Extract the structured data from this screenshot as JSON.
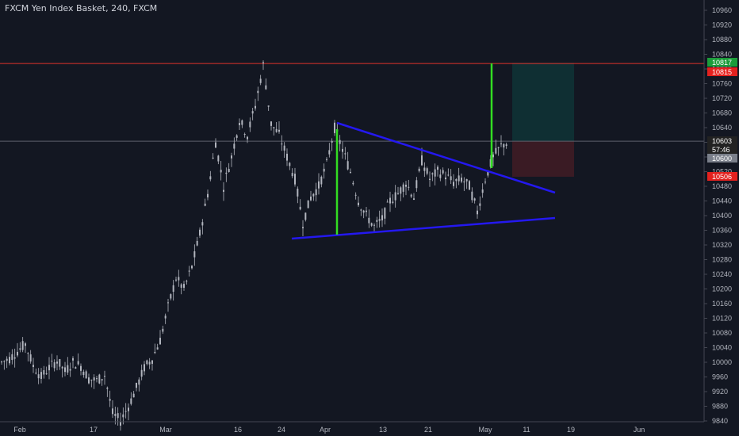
{
  "header": {
    "title": "FXCM Yen Index Basket, 240, FXCM"
  },
  "colors": {
    "background": "#131722",
    "text": "#b2b5be",
    "candle": "#b2b5be",
    "trendline": "#2418f0",
    "measure": "#33dd22",
    "resistance": "#e0332b",
    "target_zone": "#0f2f33",
    "stop_zone": "#3a1b24",
    "price_tag_green": "#1c9c3a",
    "price_tag_red": "#e3211e",
    "price_tag_dark": "#222222",
    "price_tag_gray": "#7a7f8a"
  },
  "chart_data": {
    "type": "candlestick",
    "title": "FXCM Yen Index Basket, 240, FXCM",
    "ylim": [
      9830,
      10990
    ],
    "y_ticks": [
      9840,
      9880,
      9920,
      9960,
      10000,
      10040,
      10080,
      10120,
      10160,
      10200,
      10240,
      10280,
      10320,
      10360,
      10400,
      10440,
      10480,
      10520,
      10560,
      10600,
      10640,
      10680,
      10720,
      10760,
      10800,
      10840,
      10880,
      10920,
      10960
    ],
    "x_ticks": [
      "Feb",
      "17",
      "Mar",
      "16",
      "24",
      "Apr",
      "13",
      "21",
      "May",
      "11",
      "19",
      "Jun"
    ],
    "price_path": [
      [
        0,
        10000
      ],
      [
        1,
        10010
      ],
      [
        2,
        10030
      ],
      [
        3,
        10050
      ],
      [
        4,
        9990
      ],
      [
        5,
        9960
      ],
      [
        6,
        9985
      ],
      [
        7,
        10005
      ],
      [
        8,
        9975
      ],
      [
        9,
        10000
      ],
      [
        10,
        9990
      ],
      [
        11,
        9955
      ],
      [
        12,
        9950
      ],
      [
        13,
        9965
      ],
      [
        14,
        9860
      ],
      [
        15,
        9840
      ],
      [
        16,
        9880
      ],
      [
        17,
        9930
      ],
      [
        18,
        9985
      ],
      [
        19,
        10010
      ],
      [
        20,
        10060
      ],
      [
        21,
        10150
      ],
      [
        22,
        10230
      ],
      [
        23,
        10200
      ],
      [
        24,
        10260
      ],
      [
        25,
        10350
      ],
      [
        26,
        10460
      ],
      [
        27,
        10600
      ],
      [
        28,
        10480
      ],
      [
        29,
        10560
      ],
      [
        30,
        10660
      ],
      [
        31,
        10620
      ],
      [
        32,
        10700
      ],
      [
        33,
        10810
      ],
      [
        34,
        10650
      ],
      [
        35,
        10620
      ],
      [
        36,
        10560
      ],
      [
        37,
        10500
      ],
      [
        38,
        10380
      ],
      [
        39,
        10450
      ],
      [
        40,
        10480
      ],
      [
        41,
        10540
      ],
      [
        42,
        10640
      ],
      [
        43,
        10580
      ],
      [
        44,
        10520
      ],
      [
        45,
        10440
      ],
      [
        46,
        10400
      ],
      [
        47,
        10370
      ],
      [
        48,
        10390
      ],
      [
        49,
        10440
      ],
      [
        50,
        10460
      ],
      [
        51,
        10490
      ],
      [
        52,
        10450
      ],
      [
        53,
        10550
      ],
      [
        54,
        10500
      ],
      [
        55,
        10520
      ],
      [
        56,
        10510
      ],
      [
        57,
        10490
      ],
      [
        58,
        10500
      ],
      [
        59,
        10480
      ],
      [
        60,
        10410
      ],
      [
        61,
        10500
      ],
      [
        62,
        10560
      ],
      [
        63,
        10590
      ],
      [
        64,
        10603
      ]
    ],
    "annotations": {
      "resistance_level": 10815,
      "current_price": 10603,
      "triangle_upper": [
        [
          42,
          10660
        ],
        [
          76,
          10470
        ]
      ],
      "triangle_lower": [
        [
          36,
          10340
        ],
        [
          76,
          10400
        ]
      ],
      "measure_left": [
        [
          42,
          10350
        ],
        [
          42,
          10650
        ]
      ],
      "measure_right": [
        [
          61,
          10580
        ],
        [
          61,
          10820
        ]
      ],
      "target_zone": {
        "x": [
          63,
          70
        ],
        "y": [
          10603,
          10817
        ]
      },
      "stop_zone": {
        "x": [
          63,
          70
        ],
        "y": [
          10506,
          10603
        ]
      }
    },
    "price_labels": [
      {
        "value": 10817,
        "text": "10817",
        "style": "green"
      },
      {
        "value": 10815,
        "text": "10815",
        "style": "red"
      },
      {
        "value": 10603,
        "text": "10603",
        "style": "dark"
      },
      {
        "value": 10590,
        "text": "57:46",
        "style": "dark"
      },
      {
        "value": 10600,
        "text": "10600",
        "style": "gray"
      },
      {
        "value": 10506,
        "text": "10506",
        "style": "red"
      }
    ]
  }
}
